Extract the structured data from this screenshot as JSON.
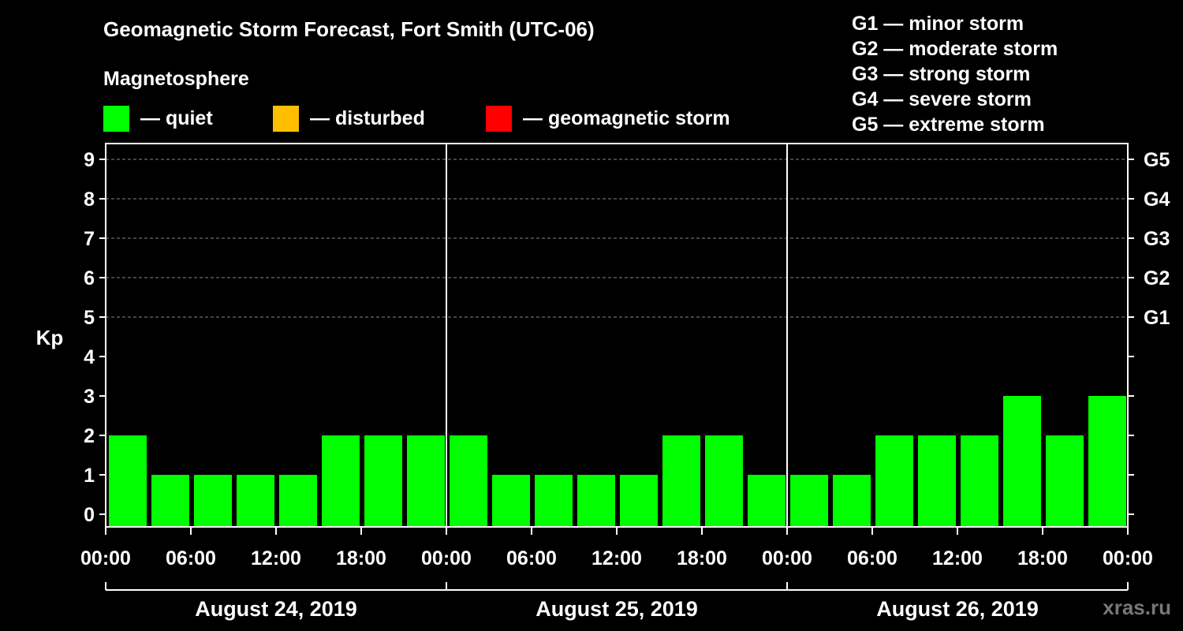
{
  "header": {
    "title": "Geomagnetic Storm Forecast, Fort Smith (UTC-06)",
    "subtitle": "Magnetosphere"
  },
  "legend": [
    {
      "label": "— quiet",
      "color": "#00ff00"
    },
    {
      "label": "— disturbed",
      "color": "#ffbf00"
    },
    {
      "label": "— geomagnetic storm",
      "color": "#ff0000"
    }
  ],
  "storm_scale": [
    "G1 — minor storm",
    "G2 — moderate storm",
    "G3 — strong storm",
    "G4 — severe storm",
    "G5 — extreme storm"
  ],
  "watermark": "xras.ru",
  "colors": {
    "quiet": "#00ff00",
    "disturbed": "#ffbf00",
    "storm": "#ff0000",
    "background": "#000000",
    "axis": "#ffffff"
  },
  "chart_data": {
    "type": "bar",
    "title": "Geomagnetic Storm Forecast, Fort Smith (UTC-06)",
    "ylabel": "Kp",
    "ylim": [
      0,
      9
    ],
    "y_ticks": [
      0,
      1,
      2,
      3,
      4,
      5,
      6,
      7,
      8,
      9
    ],
    "right_axis": [
      {
        "kp": 5,
        "label": "G1"
      },
      {
        "kp": 6,
        "label": "G2"
      },
      {
        "kp": 7,
        "label": "G3"
      },
      {
        "kp": 8,
        "label": "G4"
      },
      {
        "kp": 9,
        "label": "G5"
      }
    ],
    "x_tick_labels": [
      "00:00",
      "06:00",
      "12:00",
      "18:00",
      "00:00",
      "06:00",
      "12:00",
      "18:00",
      "00:00",
      "06:00",
      "12:00",
      "18:00",
      "00:00"
    ],
    "days": [
      "August 24, 2019",
      "August 25, 2019",
      "August 26, 2019"
    ],
    "bars_per_day": 8,
    "values": [
      2,
      1,
      1,
      1,
      1,
      2,
      2,
      2,
      2,
      1,
      1,
      1,
      1,
      2,
      2,
      1,
      1,
      1,
      2,
      2,
      2,
      3,
      2,
      3
    ],
    "grid_lines": [
      5,
      6,
      7,
      8,
      9
    ]
  }
}
